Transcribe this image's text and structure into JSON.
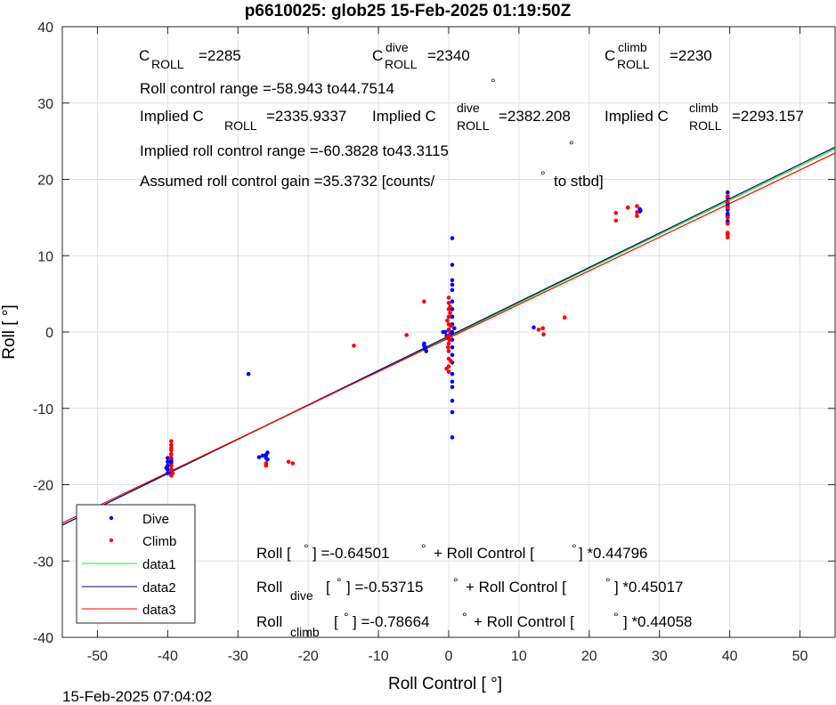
{
  "chart_data": {
    "type": "scatter",
    "title": "p6610025: glob25 15-Feb-2025 01:19:50Z",
    "xlabel": "Roll Control [   °]",
    "ylabel": "Roll [   °]",
    "xlim": [
      -55,
      55
    ],
    "ylim": [
      -40,
      40
    ],
    "xticks": [
      -50,
      -40,
      -30,
      -20,
      -10,
      0,
      10,
      20,
      30,
      40,
      50
    ],
    "yticks": [
      -40,
      -30,
      -20,
      -10,
      0,
      10,
      20,
      30,
      40
    ],
    "xtick_labels": [
      "-50",
      "-40",
      "-30",
      "-20",
      "-10",
      "0",
      "10",
      "20",
      "30",
      "40",
      "50"
    ],
    "ytick_labels": [
      "-40",
      "-30",
      "-20",
      "-10",
      "0",
      "10",
      "20",
      "30",
      "40"
    ],
    "grid": true,
    "legend_position": "bottom-left",
    "footer": "15-Feb-2025 07:04:02",
    "series": [
      {
        "name": "Dive",
        "kind": "points",
        "color": "#0000ff",
        "points": [
          [
            -39.5,
            -16
          ],
          [
            -39.5,
            -16.5
          ],
          [
            -39.5,
            -17
          ],
          [
            -39.5,
            -17.5
          ],
          [
            -39.5,
            -18
          ],
          [
            -39.5,
            -18.5
          ],
          [
            -39.5,
            -17.2
          ],
          [
            -39.5,
            -16.8
          ],
          [
            -40,
            -17
          ],
          [
            -40,
            -17.5
          ],
          [
            -40,
            -18
          ],
          [
            -40,
            -18.5
          ],
          [
            -40,
            -16.5
          ],
          [
            -40.2,
            -17.8
          ],
          [
            -28.5,
            -5.5
          ],
          [
            -27,
            -16.4
          ],
          [
            -26.5,
            -16.2
          ],
          [
            -26,
            -16.1
          ],
          [
            -26,
            -16.5
          ],
          [
            -25.8,
            -15.8
          ],
          [
            -25.8,
            -16.7
          ],
          [
            -3.5,
            -1.5
          ],
          [
            -3.3,
            -2
          ],
          [
            -3.2,
            -2.5
          ],
          [
            -3.5,
            -1.8
          ],
          [
            -3.4,
            -2.2
          ],
          [
            0.5,
            12.3
          ],
          [
            0.5,
            8.8
          ],
          [
            0.5,
            6.8
          ],
          [
            0.5,
            6.2
          ],
          [
            0.5,
            5.5
          ],
          [
            0.5,
            4
          ],
          [
            0.5,
            3
          ],
          [
            0.5,
            2
          ],
          [
            0.5,
            1
          ],
          [
            0.5,
            0
          ],
          [
            0.5,
            -1
          ],
          [
            0.5,
            -2
          ],
          [
            0.5,
            -3
          ],
          [
            0.5,
            -4
          ],
          [
            0.5,
            -5.5
          ],
          [
            0.5,
            -6.5
          ],
          [
            0.5,
            -7.2
          ],
          [
            0.5,
            -9
          ],
          [
            0.5,
            -10.5
          ],
          [
            0.5,
            -13.8
          ],
          [
            -0.5,
            0
          ],
          [
            -0.8,
            0
          ],
          [
            0,
            0.3
          ],
          [
            0.2,
            -0.3
          ],
          [
            -0.3,
            -0.5
          ],
          [
            0.8,
            0.5
          ],
          [
            12.1,
            0.6
          ],
          [
            27.2,
            15.8
          ],
          [
            27.2,
            16.1
          ],
          [
            27.3,
            15.9
          ],
          [
            39.7,
            18.3
          ],
          [
            39.7,
            17.6
          ],
          [
            39.7,
            17
          ],
          [
            39.7,
            16.5
          ],
          [
            39.7,
            16
          ],
          [
            39.7,
            15.5
          ],
          [
            39.7,
            15
          ],
          [
            39.7,
            14.5
          ],
          [
            39.7,
            15.3
          ],
          [
            39.7,
            16.8
          ]
        ]
      },
      {
        "name": "Climb",
        "kind": "points",
        "color": "#ff0000",
        "points": [
          [
            -39.5,
            -14.3
          ],
          [
            -39.5,
            -14.8
          ],
          [
            -39.5,
            -15.5
          ],
          [
            -39.5,
            -16
          ],
          [
            -39.5,
            -17.5
          ],
          [
            -39.5,
            -18
          ],
          [
            -39.5,
            -18.8
          ],
          [
            -39.3,
            -18.5
          ],
          [
            -39.5,
            -15.2
          ],
          [
            -39.6,
            -16.5
          ],
          [
            -26,
            -17.2
          ],
          [
            -26,
            -17.5
          ],
          [
            -22.8,
            -17
          ],
          [
            -22.2,
            -17.2
          ],
          [
            -13.5,
            -1.8
          ],
          [
            -6,
            -0.4
          ],
          [
            -3.5,
            4
          ],
          [
            0,
            4.5
          ],
          [
            0,
            3.8
          ],
          [
            0,
            3
          ],
          [
            0,
            2
          ],
          [
            0,
            1
          ],
          [
            0,
            0.2
          ],
          [
            0,
            -0.5
          ],
          [
            0,
            -1.5
          ],
          [
            0,
            -2.5
          ],
          [
            0,
            -3.5
          ],
          [
            0,
            -4.5
          ],
          [
            0,
            -5.2
          ],
          [
            0.2,
            2.5
          ],
          [
            -0.2,
            1.5
          ],
          [
            0.1,
            -1
          ],
          [
            -0.1,
            -2
          ],
          [
            0.3,
            0.8
          ],
          [
            0.3,
            -3.8
          ],
          [
            -0.3,
            -4.8
          ],
          [
            0.2,
            3.3
          ],
          [
            -0.2,
            -0.8
          ],
          [
            12.8,
            0.3
          ],
          [
            13.4,
            0.5
          ],
          [
            13.5,
            -0.3
          ],
          [
            16.5,
            1.9
          ],
          [
            23.8,
            15.6
          ],
          [
            23.8,
            14.6
          ],
          [
            25.5,
            16.3
          ],
          [
            26.8,
            16.5
          ],
          [
            26.8,
            15.7
          ],
          [
            26.8,
            15.2
          ],
          [
            39.7,
            17.8
          ],
          [
            39.7,
            17
          ],
          [
            39.7,
            15
          ],
          [
            39.7,
            13
          ],
          [
            39.7,
            12.8
          ],
          [
            39.7,
            12.4
          ],
          [
            39.7,
            14.2
          ],
          [
            39.7,
            16.3
          ]
        ]
      },
      {
        "name": "data1",
        "kind": "line",
        "color": "#00ff00",
        "intercept": -0.64501,
        "slope": 0.44796
      },
      {
        "name": "data2",
        "kind": "line",
        "color": "#000080",
        "intercept": -0.53715,
        "slope": 0.45017
      },
      {
        "name": "data3",
        "kind": "line",
        "color": "#ff0000",
        "intercept": -0.78664,
        "slope": 0.44058
      }
    ],
    "annotations": {
      "c_roll_main": "C",
      "c_roll_sub": "ROLL",
      "c_roll_val": "=2285",
      "c_dive_main": "C",
      "c_dive_sup": "dive",
      "c_dive_sub": "ROLL",
      "c_dive_val": "=2340",
      "c_climb_main": "C",
      "c_climb_sup": "climb",
      "c_climb_sub": "ROLL",
      "c_climb_val": "=2230",
      "roll_range": "Roll control range =-58.943 to44.7514",
      "roll_range_deg": "°",
      "implied_c": "Implied C",
      "implied_c_sub": "ROLL",
      "implied_c_val": "=2335.9337",
      "implied_c_dive": "Implied C",
      "implied_c_dive_sup": "dive",
      "implied_c_dive_sub": "ROLL",
      "implied_c_dive_val": "=2382.208",
      "implied_c_climb": "Implied C",
      "implied_c_climb_sup": "climb",
      "implied_c_climb_sub": "ROLL",
      "implied_c_climb_val": "=2293.157",
      "implied_range": "Implied roll control range =-60.3828 to43.3115",
      "implied_range_deg": "°",
      "gain": "Assumed roll control gain =35.3732 [counts/",
      "gain_deg": "°",
      "gain_end": "to stbd]",
      "fit_all_a": "Roll [",
      "fit_all_deg1": "°",
      "fit_all_b": "] =-0.64501",
      "fit_all_deg2": "°",
      "fit_all_c": "+ Roll Control [",
      "fit_all_deg3": "°",
      "fit_all_d": "] *0.44796",
      "fit_dive_a": "Roll",
      "fit_dive_sub": "dive",
      "fit_dive_b": "[",
      "fit_dive_deg1": "°",
      "fit_dive_c": "] =-0.53715",
      "fit_dive_deg2": "°",
      "fit_dive_d": "+ Roll Control [",
      "fit_dive_deg3": "°",
      "fit_dive_e": "] *0.45017",
      "fit_climb_a": "Roll",
      "fit_climb_sub": "climb",
      "fit_climb_b": "[",
      "fit_climb_deg1": "°",
      "fit_climb_c": "] =-0.78664",
      "fit_climb_deg2": "°",
      "fit_climb_d": "+ Roll Control [",
      "fit_climb_deg3": "°",
      "fit_climb_e": "] *0.44058"
    }
  }
}
